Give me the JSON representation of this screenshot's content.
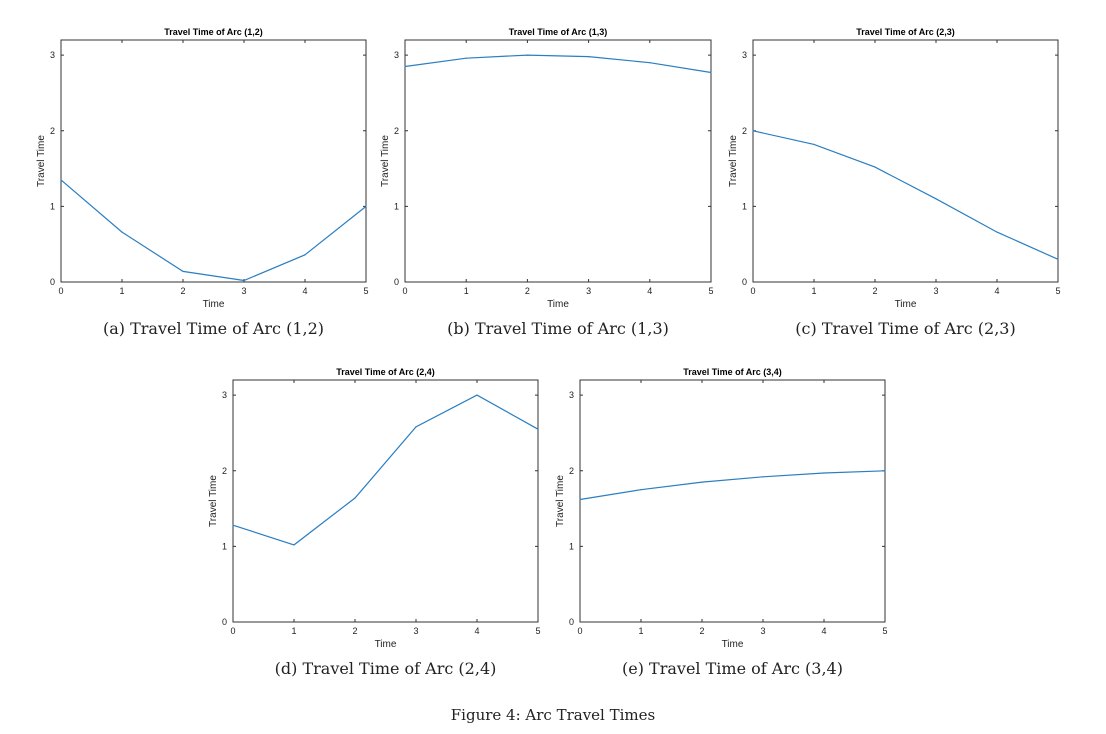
{
  "chart_data": [
    {
      "type": "line",
      "title": "Travel Time of Arc (1,2)",
      "xlabel": "Time",
      "ylabel": "Travel Time",
      "xlim": [
        0,
        5
      ],
      "ylim": [
        0,
        3.2
      ],
      "xticks": [
        "0",
        "1",
        "2",
        "3",
        "4",
        "5"
      ],
      "yticks": [
        "0",
        "1",
        "2",
        "3"
      ],
      "x": [
        0,
        1,
        2,
        3,
        4,
        5
      ],
      "values": [
        1.35,
        0.66,
        0.14,
        0.02,
        0.36,
        1.0
      ],
      "caption": "(a) Travel Time of Arc (1,2)"
    },
    {
      "type": "line",
      "title": "Travel Time of Arc (1,3)",
      "xlabel": "Time",
      "ylabel": "Travel Time",
      "xlim": [
        0,
        5
      ],
      "ylim": [
        0,
        3.2
      ],
      "xticks": [
        "0",
        "1",
        "2",
        "3",
        "4",
        "5"
      ],
      "yticks": [
        "0",
        "1",
        "2",
        "3"
      ],
      "x": [
        0,
        1,
        2,
        3,
        4,
        5
      ],
      "values": [
        2.85,
        2.96,
        3.0,
        2.98,
        2.9,
        2.77
      ],
      "caption": "(b) Travel Time of Arc (1,3)"
    },
    {
      "type": "line",
      "title": "Travel Time of Arc (2,3)",
      "xlabel": "Time",
      "ylabel": "Travel Time",
      "xlim": [
        0,
        5
      ],
      "ylim": [
        0,
        3.2
      ],
      "xticks": [
        "0",
        "1",
        "2",
        "3",
        "4",
        "5"
      ],
      "yticks": [
        "0",
        "1",
        "2",
        "3"
      ],
      "x": [
        0,
        1,
        2,
        3,
        4,
        5
      ],
      "values": [
        2.0,
        1.82,
        1.52,
        1.1,
        0.66,
        0.3
      ],
      "caption": "(c) Travel Time of Arc (2,3)"
    },
    {
      "type": "line",
      "title": "Travel Time of Arc (2,4)",
      "xlabel": "Time",
      "ylabel": "Travel Time",
      "xlim": [
        0,
        5
      ],
      "ylim": [
        0,
        3.2
      ],
      "xticks": [
        "0",
        "1",
        "2",
        "3",
        "4",
        "5"
      ],
      "yticks": [
        "0",
        "1",
        "2",
        "3"
      ],
      "x": [
        0,
        1,
        2,
        3,
        4,
        5
      ],
      "values": [
        1.28,
        1.02,
        1.64,
        2.58,
        3.0,
        2.55
      ],
      "caption": "(d) Travel Time of Arc (2,4)"
    },
    {
      "type": "line",
      "title": "Travel Time of Arc (3,4)",
      "xlabel": "Time",
      "ylabel": "Travel Time",
      "xlim": [
        0,
        5
      ],
      "ylim": [
        0,
        3.2
      ],
      "xticks": [
        "0",
        "1",
        "2",
        "3",
        "4",
        "5"
      ],
      "yticks": [
        "0",
        "1",
        "2",
        "3"
      ],
      "x": [
        0,
        1,
        2,
        3,
        4,
        5
      ],
      "values": [
        1.62,
        1.75,
        1.85,
        1.92,
        1.97,
        2.0
      ],
      "caption": "(e) Travel Time of Arc (3,4)"
    }
  ],
  "figure_caption": "Figure 4: Arc Travel Times",
  "colors": {
    "line": "#2a7ec1",
    "axes": "#333333"
  }
}
